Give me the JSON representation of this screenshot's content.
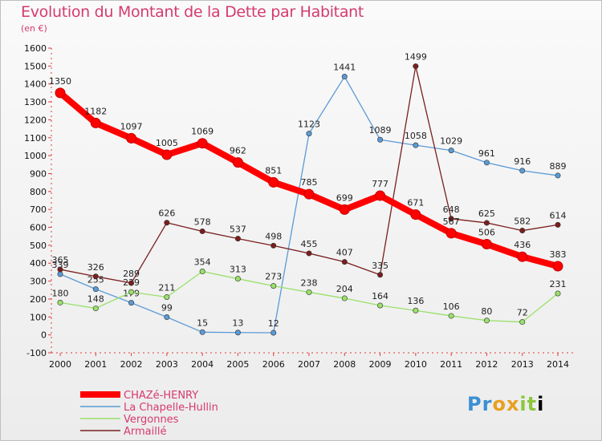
{
  "header": {
    "title": "Evolution du Montant de la Dette par Habitant",
    "subtitle": "(en €)"
  },
  "logo": {
    "text": [
      "P",
      "r",
      "o",
      "x",
      "i",
      "t",
      "i"
    ]
  },
  "chart_data": {
    "type": "line",
    "title": "Evolution du Montant de la Dette par Habitant",
    "ylabel": "(en €)",
    "xlabel": "",
    "x": [
      "2000",
      "2001",
      "2002",
      "2003",
      "2004",
      "2005",
      "2006",
      "2007",
      "2008",
      "2009",
      "2010",
      "2011",
      "2012",
      "2013",
      "2014"
    ],
    "ylim": [
      -100,
      1600
    ],
    "yticks": [
      -100,
      0,
      100,
      200,
      300,
      400,
      500,
      600,
      700,
      800,
      900,
      1000,
      1100,
      1200,
      1300,
      1400,
      1500,
      1600
    ],
    "grid": false,
    "legend_position": "bottom-left",
    "series": [
      {
        "name": "La Chapelle-Hullin",
        "color": "#5b9bd5",
        "values": [
          339,
          255,
          179,
          99,
          15,
          13,
          12,
          1123,
          1441,
          1089,
          1058,
          1029,
          961,
          916,
          889
        ]
      },
      {
        "name": "Vergonnes",
        "color": "#99e06a",
        "values": [
          180,
          148,
          239,
          211,
          354,
          313,
          273,
          238,
          204,
          164,
          136,
          106,
          80,
          72,
          231
        ]
      },
      {
        "name": "Armaillé",
        "color": "#7a1e1e",
        "values": [
          365,
          326,
          289,
          626,
          578,
          537,
          498,
          455,
          407,
          335,
          1499,
          648,
          625,
          582,
          614
        ]
      },
      {
        "name": "CHAZé-HENRY",
        "color": "#ff0000",
        "values": [
          1350,
          1182,
          1097,
          1005,
          1069,
          962,
          851,
          785,
          699,
          777,
          671,
          567,
          506,
          436,
          383
        ]
      }
    ],
    "legend_order": [
      "CHAZé-HENRY",
      "La Chapelle-Hullin",
      "Vergonnes",
      "Armaillé"
    ]
  }
}
